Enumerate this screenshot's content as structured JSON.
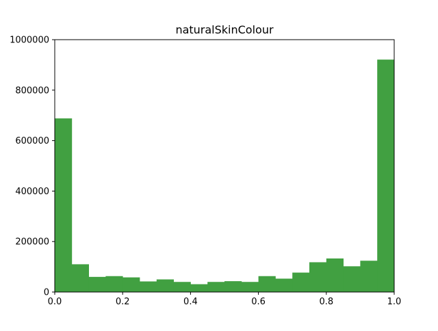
{
  "chart_data": {
    "type": "bar",
    "title": "naturalSkinColour",
    "xlabel": "",
    "ylabel": "",
    "xlim": [
      0.0,
      1.0
    ],
    "ylim": [
      0,
      1000000
    ],
    "grid": false,
    "bin_edges": [
      0.0,
      0.05,
      0.1,
      0.15,
      0.2,
      0.25,
      0.3,
      0.35,
      0.4,
      0.45,
      0.5,
      0.55,
      0.6,
      0.65,
      0.7,
      0.75,
      0.8,
      0.85,
      0.9,
      0.95,
      1.0
    ],
    "values": [
      688000,
      110000,
      60000,
      63000,
      58000,
      42000,
      50000,
      40000,
      31000,
      40000,
      43000,
      40000,
      63000,
      53000,
      77000,
      118000,
      133000,
      102000,
      124000,
      921000
    ],
    "x_ticks": [
      {
        "value": 0.0,
        "label": "0.0"
      },
      {
        "value": 0.2,
        "label": "0.2"
      },
      {
        "value": 0.4,
        "label": "0.4"
      },
      {
        "value": 0.6,
        "label": "0.6"
      },
      {
        "value": 0.8,
        "label": "0.8"
      },
      {
        "value": 1.0,
        "label": "1.0"
      }
    ],
    "y_ticks": [
      {
        "value": 0,
        "label": "0"
      },
      {
        "value": 200000,
        "label": "200000"
      },
      {
        "value": 400000,
        "label": "400000"
      },
      {
        "value": 600000,
        "label": "600000"
      },
      {
        "value": 800000,
        "label": "800000"
      },
      {
        "value": 1000000,
        "label": "1000000"
      }
    ],
    "colors": {
      "bar": "#41a041",
      "axis": "#000000",
      "background": "#ffffff"
    }
  }
}
